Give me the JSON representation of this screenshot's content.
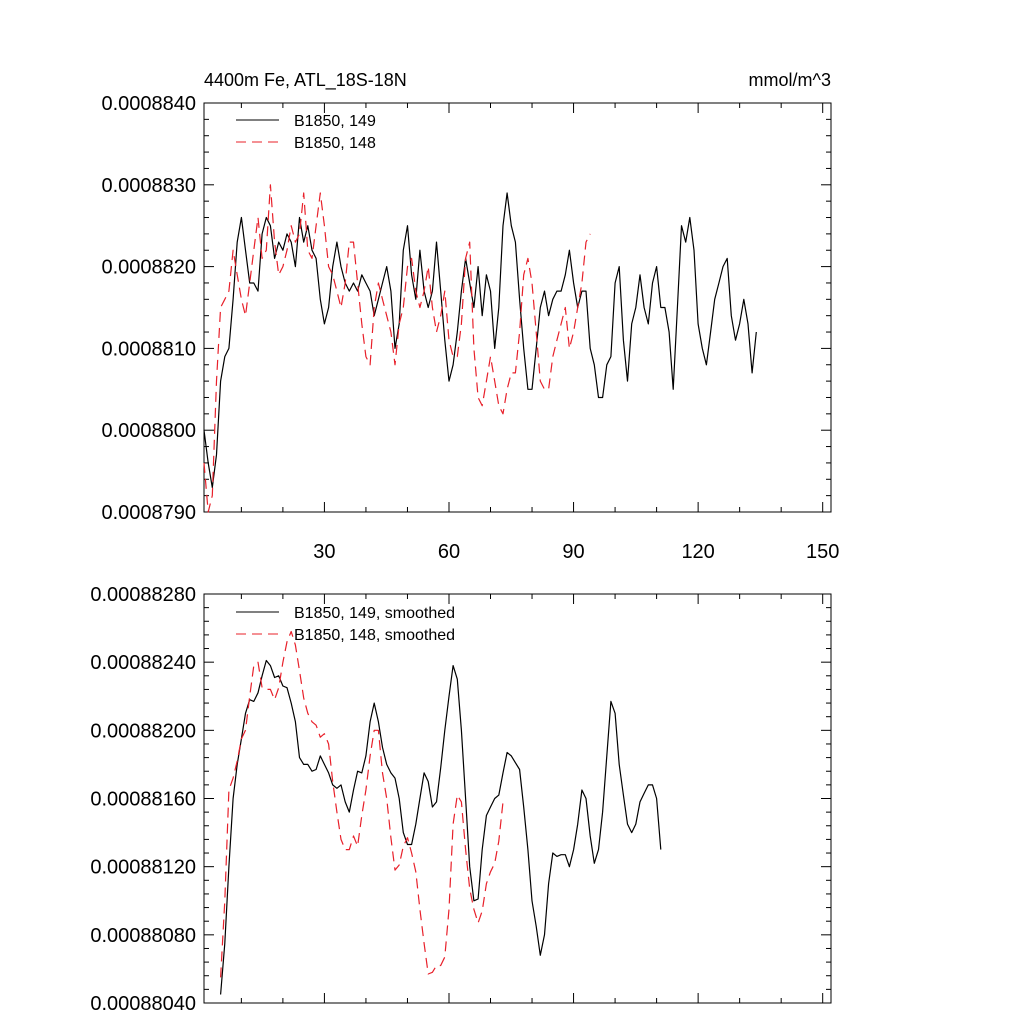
{
  "chart_data": [
    {
      "type": "line",
      "title": "4400m Fe, ATL_18S-18N",
      "units": "mmol/m^3",
      "xlim": [
        1,
        152
      ],
      "ylim": [
        0.000879,
        0.000884
      ],
      "yticks": [
        "0.0008790",
        "0.0008800",
        "0.0008810",
        "0.0008820",
        "0.0008830",
        "0.0008840"
      ],
      "xticks": [
        "30",
        "60",
        "90",
        "120",
        "150"
      ],
      "legend_position": "top-left",
      "series": [
        {
          "name": "B1850, 149",
          "color": "#000000",
          "style": "solid",
          "x_start": 1,
          "values": [
            0.00088,
            0.0008796,
            0.0008793,
            0.0008797,
            0.0008806,
            0.0008809,
            0.000881,
            0.0008816,
            0.0008823,
            0.0008826,
            0.0008822,
            0.0008818,
            0.0008818,
            0.0008817,
            0.0008824,
            0.0008826,
            0.0008825,
            0.0008821,
            0.0008823,
            0.0008822,
            0.0008824,
            0.0008823,
            0.000882,
            0.0008826,
            0.0008823,
            0.0008825,
            0.0008822,
            0.0008821,
            0.0008816,
            0.0008813,
            0.0008815,
            0.000882,
            0.0008823,
            0.000882,
            0.0008818,
            0.0008817,
            0.0008818,
            0.0008817,
            0.0008819,
            0.0008818,
            0.0008817,
            0.0008814,
            0.0008816,
            0.0008818,
            0.000882,
            0.0008817,
            0.000881,
            0.0008813,
            0.0008822,
            0.0008825,
            0.0008819,
            0.0008816,
            0.0008822,
            0.0008817,
            0.0008815,
            0.0008817,
            0.0008823,
            0.0008817,
            0.0008811,
            0.0008806,
            0.0008808,
            0.0008812,
            0.0008817,
            0.0008821,
            0.0008818,
            0.0008815,
            0.000882,
            0.0008814,
            0.0008819,
            0.0008817,
            0.000881,
            0.0008815,
            0.0008825,
            0.0008829,
            0.0008825,
            0.0008823,
            0.0008816,
            0.000881,
            0.0008805,
            0.0008805,
            0.000881,
            0.0008815,
            0.0008817,
            0.0008814,
            0.0008816,
            0.0008817,
            0.0008817,
            0.0008819,
            0.0008822,
            0.0008818,
            0.0008815,
            0.0008817,
            0.0008817,
            0.000881,
            0.0008808,
            0.0008804,
            0.0008804,
            0.0008808,
            0.0008809,
            0.0008818,
            0.000882,
            0.0008811,
            0.0008806,
            0.0008813,
            0.0008815,
            0.0008819,
            0.0008815,
            0.0008813,
            0.0008818,
            0.000882,
            0.0008815,
            0.0008815,
            0.0008812,
            0.0008805,
            0.0008815,
            0.0008825,
            0.0008823,
            0.0008826,
            0.0008822,
            0.0008813,
            0.000881,
            0.0008808,
            0.0008812,
            0.0008816,
            0.0008818,
            0.000882,
            0.0008821,
            0.0008814,
            0.0008811,
            0.0008813,
            0.0008816,
            0.0008813,
            0.0008807,
            0.0008812
          ]
        },
        {
          "name": "B1850, 148",
          "color": "#e8202a",
          "style": "dashed",
          "x_start": 1,
          "values": [
            0.0008796,
            0.000879,
            0.0008792,
            0.0008806,
            0.0008815,
            0.0008816,
            0.0008817,
            0.0008822,
            0.0008819,
            0.0008816,
            0.0008814,
            0.0008818,
            0.0008822,
            0.0008826,
            0.0008821,
            0.0008822,
            0.000883,
            0.0008823,
            0.0008819,
            0.000882,
            0.0008822,
            0.0008825,
            0.0008823,
            0.0008824,
            0.0008829,
            0.0008822,
            0.0008821,
            0.0008825,
            0.0008829,
            0.0008825,
            0.000882,
            0.0008819,
            0.0008817,
            0.0008815,
            0.0008818,
            0.0008823,
            0.0008823,
            0.0008818,
            0.0008813,
            0.0008809,
            0.0008808,
            0.0008815,
            0.0008818,
            0.0008816,
            0.0008814,
            0.0008812,
            0.0008808,
            0.0008813,
            0.0008815,
            0.000882,
            0.0008821,
            0.0008817,
            0.0008815,
            0.0008817,
            0.000882,
            0.0008815,
            0.0008812,
            0.0008814,
            0.0008817,
            0.0008811,
            0.0008809,
            0.0008809,
            0.0008813,
            0.0008821,
            0.0008823,
            0.000881,
            0.0008804,
            0.0008803,
            0.0008806,
            0.0008809,
            0.0008806,
            0.0008803,
            0.0008802,
            0.0008805,
            0.0008807,
            0.0008807,
            0.0008812,
            0.0008819,
            0.0008821,
            0.0008818,
            0.0008812,
            0.0008806,
            0.0008805,
            0.0008805,
            0.0008809,
            0.0008811,
            0.0008813,
            0.0008815,
            0.000881,
            0.0008812,
            0.0008815,
            0.0008818,
            0.0008823,
            0.0008824
          ]
        }
      ]
    },
    {
      "type": "line",
      "title": "",
      "units": "",
      "xlim": [
        1,
        152
      ],
      "ylim": [
        0.0008804,
        0.0008828
      ],
      "yticks": [
        "0.00088040",
        "0.00088080",
        "0.00088120",
        "0.00088160",
        "0.00088200",
        "0.00088240",
        "0.00088280"
      ],
      "xticks": [],
      "legend_position": "top-left",
      "series": [
        {
          "name": "B1850, 149, smoothed",
          "color": "#000000",
          "style": "solid",
          "x_start": 5,
          "values": [
            0.00088045,
            0.00088075,
            0.0008812,
            0.0008816,
            0.0008818,
            0.00088195,
            0.0008821,
            0.00088218,
            0.00088217,
            0.00088222,
            0.00088232,
            0.00088241,
            0.00088238,
            0.00088231,
            0.00088232,
            0.00088226,
            0.00088225,
            0.00088216,
            0.00088205,
            0.00088184,
            0.0008818,
            0.0008818,
            0.00088176,
            0.00088177,
            0.00088185,
            0.0008818,
            0.00088175,
            0.00088168,
            0.00088166,
            0.00088168,
            0.00088158,
            0.00088152,
            0.00088165,
            0.00088176,
            0.00088175,
            0.00088185,
            0.00088205,
            0.00088216,
            0.00088205,
            0.0008819,
            0.0008818,
            0.00088175,
            0.00088172,
            0.0008816,
            0.0008814,
            0.00088133,
            0.00088133,
            0.00088145,
            0.0008816,
            0.00088175,
            0.0008817,
            0.00088155,
            0.00088158,
            0.00088178,
            0.000882,
            0.0008822,
            0.00088238,
            0.0008823,
            0.000882,
            0.0008816,
            0.0008812,
            0.000881,
            0.00088101,
            0.0008813,
            0.0008815,
            0.00088155,
            0.0008816,
            0.00088162,
            0.00088175,
            0.00088187,
            0.00088185,
            0.00088181,
            0.00088177,
            0.00088155,
            0.0008813,
            0.000881,
            0.00088085,
            0.00088068,
            0.0008808,
            0.0008811,
            0.00088128,
            0.00088126,
            0.00088127,
            0.00088127,
            0.0008812,
            0.0008813,
            0.00088145,
            0.00088165,
            0.0008816,
            0.00088138,
            0.00088122,
            0.0008813,
            0.00088152,
            0.00088185,
            0.00088217,
            0.0008821,
            0.0008818,
            0.00088162,
            0.00088145,
            0.0008814,
            0.00088145,
            0.00088158,
            0.00088163,
            0.00088168,
            0.00088168,
            0.0008816,
            0.0008813
          ]
        },
        {
          "name": "B1850, 148, smoothed",
          "color": "#e8202a",
          "style": "dashed",
          "x_start": 5,
          "values": [
            0.00088055,
            0.000881,
            0.00088165,
            0.00088172,
            0.00088182,
            0.00088195,
            0.000882,
            0.0008822,
            0.00088238,
            0.0008824,
            0.00088225,
            0.00088224,
            0.00088224,
            0.00088218,
            0.00088225,
            0.0008824,
            0.00088252,
            0.00088258,
            0.0008825,
            0.00088235,
            0.00088219,
            0.0008821,
            0.00088205,
            0.00088203,
            0.00088196,
            0.00088198,
            0.00088192,
            0.0008817,
            0.00088152,
            0.00088136,
            0.0008813,
            0.0008813,
            0.00088138,
            0.00088132,
            0.0008815,
            0.00088165,
            0.00088185,
            0.000882,
            0.000882,
            0.00088175,
            0.0008816,
            0.00088137,
            0.00088118,
            0.00088121,
            0.00088132,
            0.00088137,
            0.00088128,
            0.00088117,
            0.00088095,
            0.00088075,
            0.00088057,
            0.00088058,
            0.00088062,
            0.00088062,
            0.00088067,
            0.00088095,
            0.00088145,
            0.00088162,
            0.00088158,
            0.0008813,
            0.00088107,
            0.00088095,
            0.00088087,
            0.00088094,
            0.0008811,
            0.00088117,
            0.00088122,
            0.00088135,
            0.00088158
          ]
        }
      ]
    }
  ]
}
